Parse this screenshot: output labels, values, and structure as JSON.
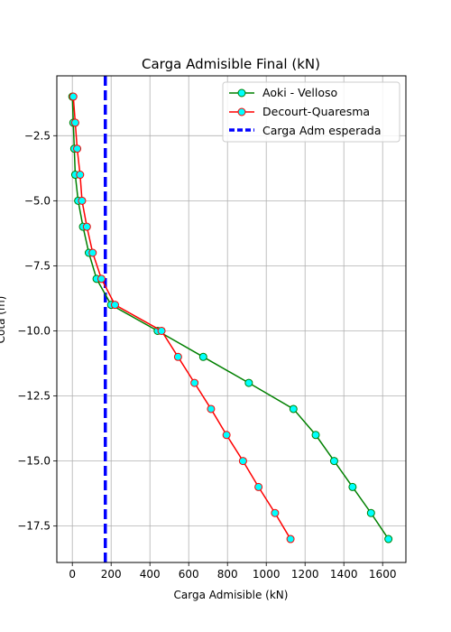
{
  "chart_data": {
    "type": "line",
    "title": "Carga Admisible Final (kN)",
    "xlabel": "Carga Admisible (kN)",
    "ylabel": "Cota (m)",
    "xlim": [
      -80,
      1720
    ],
    "ylim": [
      -18.9,
      -0.2
    ],
    "xticks": [
      0,
      200,
      400,
      600,
      800,
      1000,
      1200,
      1400,
      1600
    ],
    "yticks": [
      -2.5,
      -5.0,
      -7.5,
      -10.0,
      -12.5,
      -15.0,
      -17.5
    ],
    "ytick_labels": [
      "−2.5",
      "−5.0",
      "−7.5",
      "−10.0",
      "−12.5",
      "−15.0",
      "−17.5"
    ],
    "grid": true,
    "legend_position": "top-right",
    "series": [
      {
        "name": "Aoki - Velloso",
        "line_color": "#008000",
        "marker_face": "#00ffff",
        "marker_edge": "#008000",
        "points": [
          [
            0,
            -1
          ],
          [
            5,
            -2
          ],
          [
            10,
            -3
          ],
          [
            15,
            -4
          ],
          [
            30,
            -5
          ],
          [
            55,
            -6
          ],
          [
            85,
            -7
          ],
          [
            125,
            -8
          ],
          [
            200,
            -9
          ],
          [
            440,
            -10
          ],
          [
            675,
            -11
          ],
          [
            910,
            -12
          ],
          [
            1140,
            -13
          ],
          [
            1255,
            -14
          ],
          [
            1350,
            -15
          ],
          [
            1445,
            -16
          ],
          [
            1540,
            -17
          ],
          [
            1630,
            -18
          ]
        ]
      },
      {
        "name": "Decourt-Quaresma",
        "line_color": "#ff0000",
        "marker_face": "#00ffff",
        "marker_edge": "#ff0000",
        "points": [
          [
            5,
            -1
          ],
          [
            15,
            -2
          ],
          [
            25,
            -3
          ],
          [
            40,
            -4
          ],
          [
            50,
            -5
          ],
          [
            75,
            -6
          ],
          [
            105,
            -7
          ],
          [
            150,
            -8
          ],
          [
            220,
            -9
          ],
          [
            460,
            -10
          ],
          [
            545,
            -11
          ],
          [
            630,
            -12
          ],
          [
            715,
            -13
          ],
          [
            795,
            -14
          ],
          [
            880,
            -15
          ],
          [
            960,
            -16
          ],
          [
            1045,
            -17
          ],
          [
            1125,
            -18
          ]
        ]
      }
    ],
    "reference_line": {
      "name": "Carga Adm esperada",
      "x": 170,
      "color": "#0000ff",
      "style": "dashed"
    }
  }
}
